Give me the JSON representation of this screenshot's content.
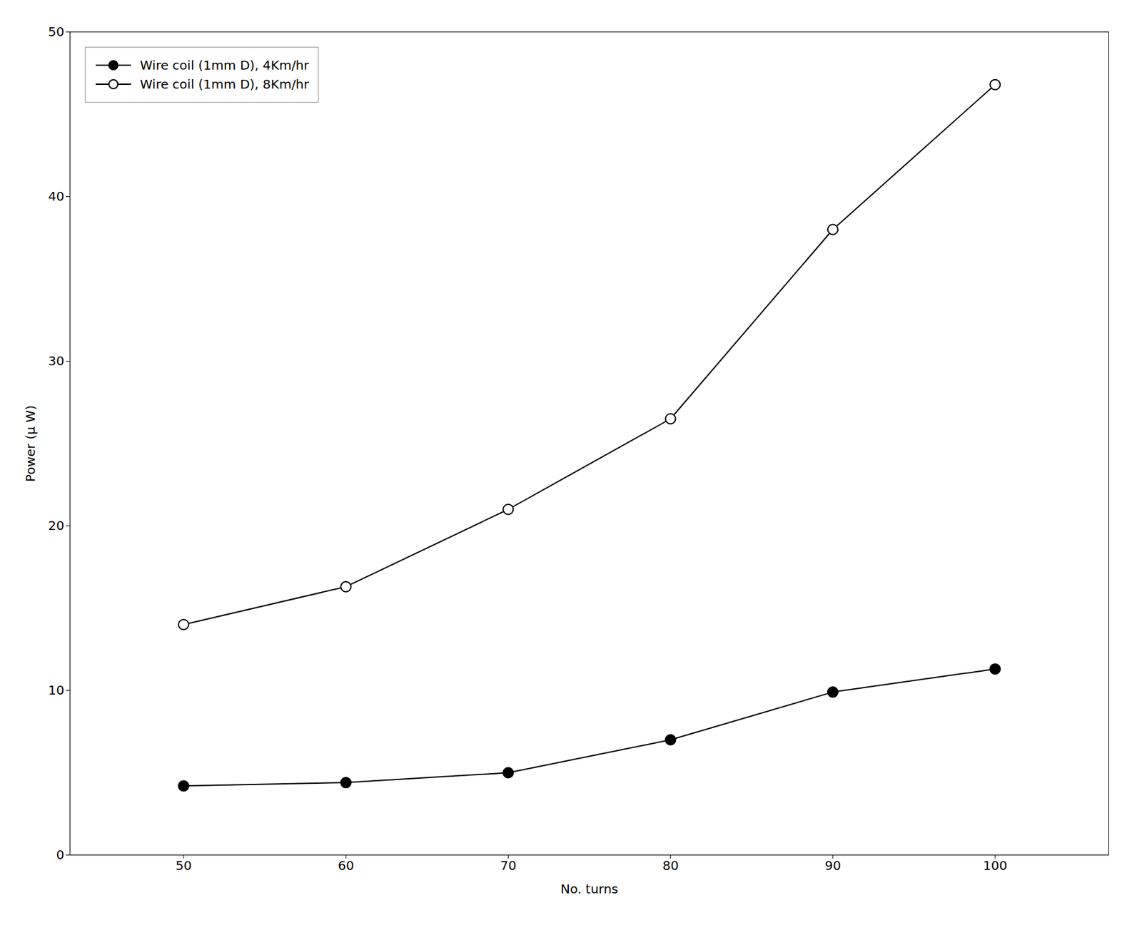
{
  "chart_data": {
    "type": "line",
    "x": [
      50,
      60,
      70,
      80,
      90,
      100
    ],
    "series": [
      {
        "name": "Wire coil (1mm D), 4Km/hr",
        "color": "#000000",
        "marker": "circle",
        "values": [
          4.2,
          4.4,
          5.0,
          7.0,
          9.9,
          11.3
        ]
      },
      {
        "name": "Wire coil (1mm D), 8Km/hr",
        "color": "#000000",
        "marker": "open_circle",
        "values": [
          14.0,
          16.3,
          21.0,
          26.5,
          38.0,
          46.8
        ]
      }
    ],
    "xlabel": "No. turns",
    "ylabel": "Power (μ W)",
    "xlim": [
      43,
      107
    ],
    "ylim": [
      0,
      50
    ],
    "xticks": [
      50,
      60,
      70,
      80,
      90,
      100
    ],
    "yticks": [
      0,
      10,
      20,
      30,
      40,
      50
    ],
    "legend": "upper left",
    "grid": false
  }
}
